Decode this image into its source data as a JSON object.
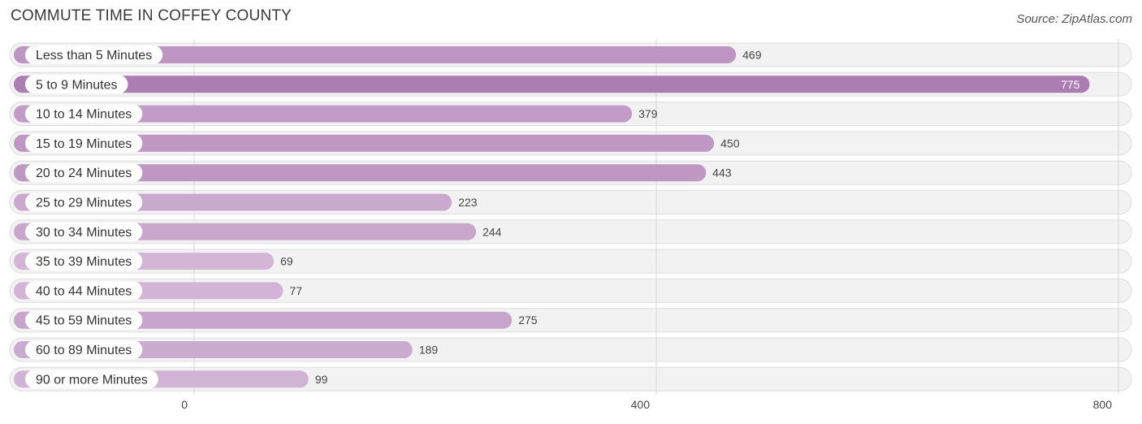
{
  "header": {
    "title": "COMMUTE TIME IN COFFEY COUNTY",
    "source": "Source: ZipAtlas.com"
  },
  "colors": {
    "bar_dark": "#ac7db3",
    "bar_light": "#d3b5d6",
    "track": "#f2f2f2"
  },
  "chart_data": {
    "type": "bar",
    "orientation": "horizontal",
    "title": "COMMUTE TIME IN COFFEY COUNTY",
    "categories": [
      "Less than 5 Minutes",
      "5 to 9 Minutes",
      "10 to 14 Minutes",
      "15 to 19 Minutes",
      "20 to 24 Minutes",
      "25 to 29 Minutes",
      "30 to 34 Minutes",
      "35 to 39 Minutes",
      "40 to 44 Minutes",
      "45 to 59 Minutes",
      "60 to 89 Minutes",
      "90 or more Minutes"
    ],
    "values": [
      469,
      775,
      379,
      450,
      443,
      223,
      244,
      69,
      77,
      275,
      189,
      99
    ],
    "xlim": [
      0,
      800
    ],
    "xticks": [
      0,
      400,
      800
    ],
    "grid": true,
    "legend": "none"
  }
}
